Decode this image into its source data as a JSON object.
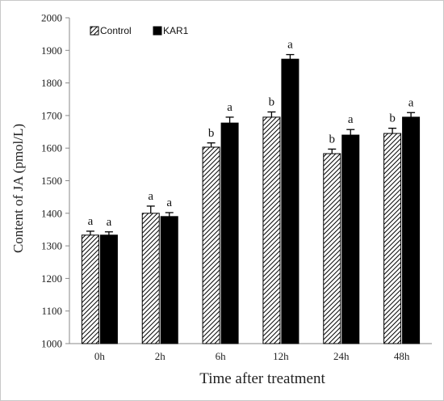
{
  "chart_data": {
    "type": "bar",
    "categories": [
      "0h",
      "2h",
      "6h",
      "12h",
      "24h",
      "48h"
    ],
    "series": [
      {
        "name": "Control",
        "pattern": "diagonal-hatch",
        "color": "#000000",
        "values": [
          1333,
          1400,
          1603,
          1695,
          1583,
          1645
        ],
        "errors": [
          12,
          22,
          13,
          16,
          14,
          16
        ],
        "labels": [
          "a",
          "a",
          "b",
          "b",
          "b",
          "b"
        ]
      },
      {
        "name": "KAR1",
        "pattern": "solid",
        "color": "#000000",
        "values": [
          1333,
          1390,
          1677,
          1873,
          1640,
          1695
        ],
        "errors": [
          10,
          12,
          18,
          14,
          17,
          14
        ],
        "labels": [
          "a",
          "a",
          "a",
          "a",
          "a",
          "a"
        ]
      }
    ],
    "xlabel": "Time after treatment",
    "ylabel": "Content of JA (pmol/L)",
    "ylim": [
      1000,
      2000
    ],
    "yticks": [
      1000,
      1100,
      1200,
      1300,
      1400,
      1500,
      1600,
      1700,
      1800,
      1900,
      2000
    ],
    "grid": false,
    "legend_position": "top-left"
  }
}
